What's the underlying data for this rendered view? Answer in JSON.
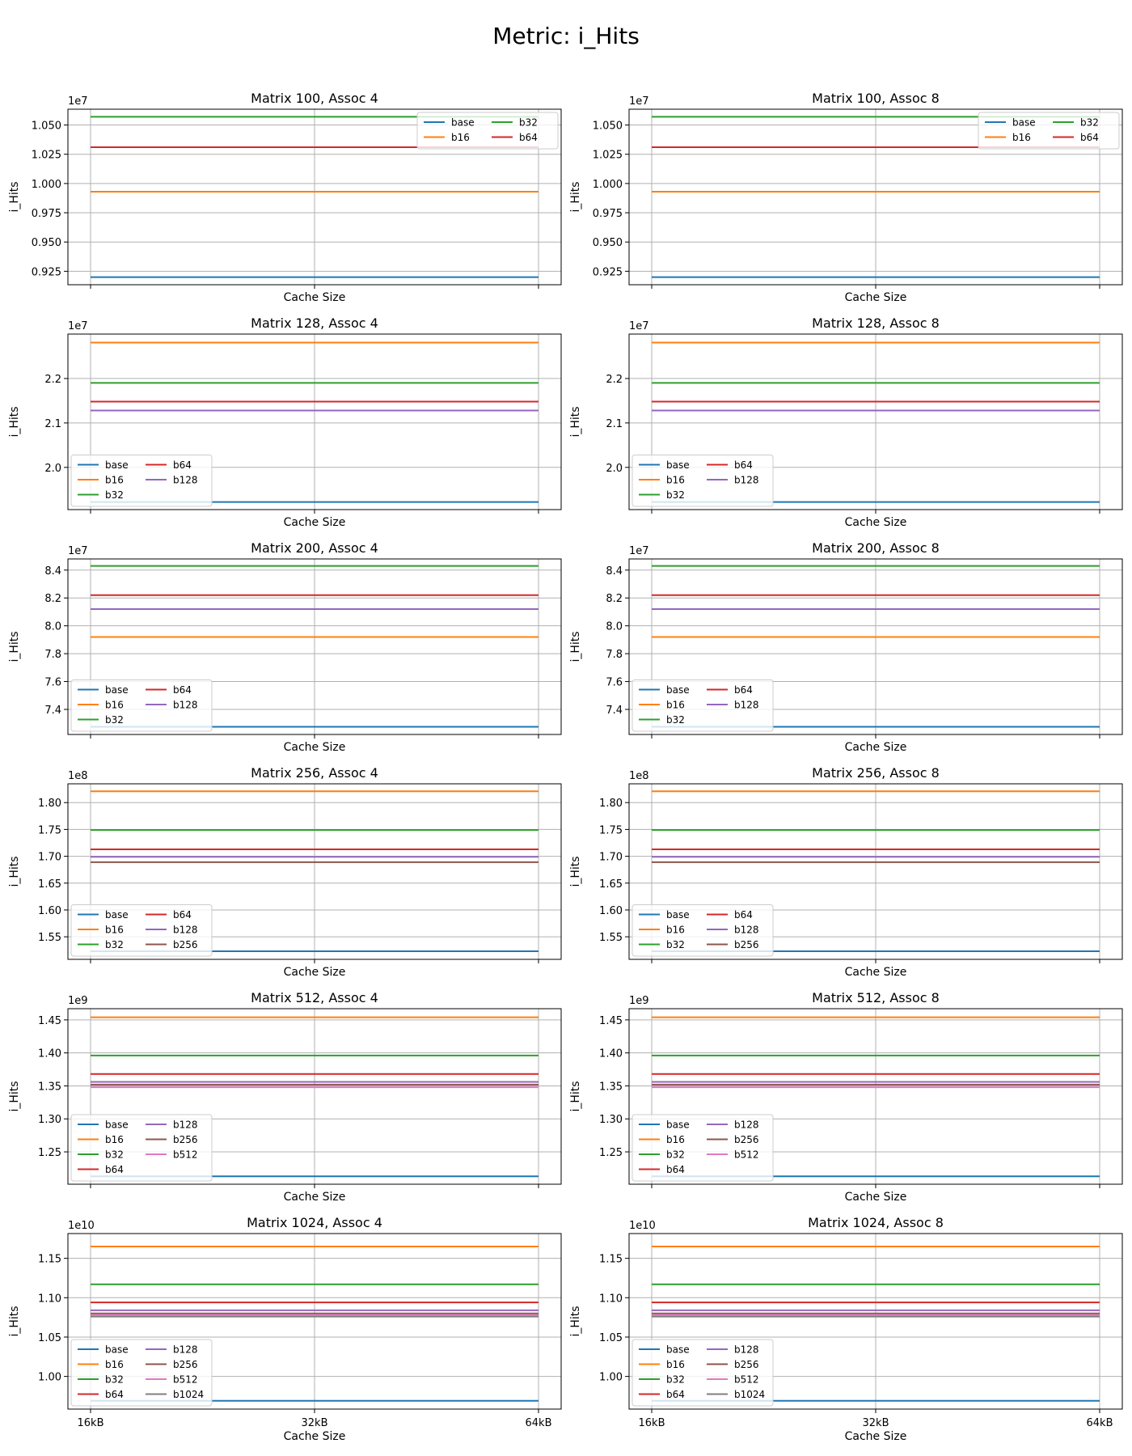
{
  "suptitle": "Metric: i_Hits",
  "colors": {
    "base": "#1f77b4",
    "b16": "#ff7f0e",
    "b32": "#2ca02c",
    "b64": "#d62728",
    "b128": "#9467bd",
    "b256": "#8c564b",
    "b512": "#e377c2",
    "b1024": "#7f7f7f"
  },
  "chart_data": [
    {
      "type": "line",
      "title": "Matrix 100, Assoc 4",
      "xlabel": "Cache Size",
      "ylabel": "i_Hits",
      "offset": "1e7",
      "legend": "top-right",
      "grid": true,
      "x": [
        "16kB",
        "32kB",
        "64kB"
      ],
      "show_xticklabels": false,
      "ylim": [
        0.9135,
        1.0635
      ],
      "yticks": [
        0.925,
        0.95,
        0.975,
        1.0,
        1.025,
        1.05
      ],
      "ytick_labels": [
        "0.925",
        "0.950",
        "0.975",
        "1.000",
        "1.025",
        "1.050"
      ],
      "series": [
        {
          "name": "base",
          "values": [
            0.92,
            0.92,
            0.92
          ]
        },
        {
          "name": "b16",
          "values": [
            0.993,
            0.993,
            0.993
          ]
        },
        {
          "name": "b32",
          "values": [
            1.057,
            1.057,
            1.057
          ]
        },
        {
          "name": "b64",
          "values": [
            1.031,
            1.031,
            1.031
          ]
        }
      ]
    },
    {
      "type": "line",
      "title": "Matrix 100, Assoc 8",
      "xlabel": "Cache Size",
      "ylabel": "i_Hits",
      "offset": "1e7",
      "legend": "top-right",
      "grid": true,
      "x": [
        "16kB",
        "32kB",
        "64kB"
      ],
      "show_xticklabels": false,
      "ylim": [
        0.9135,
        1.0635
      ],
      "yticks": [
        0.925,
        0.95,
        0.975,
        1.0,
        1.025,
        1.05
      ],
      "ytick_labels": [
        "0.925",
        "0.950",
        "0.975",
        "1.000",
        "1.025",
        "1.050"
      ],
      "series": [
        {
          "name": "base",
          "values": [
            0.92,
            0.92,
            0.92
          ]
        },
        {
          "name": "b16",
          "values": [
            0.993,
            0.993,
            0.993
          ]
        },
        {
          "name": "b32",
          "values": [
            1.057,
            1.057,
            1.057
          ]
        },
        {
          "name": "b64",
          "values": [
            1.031,
            1.031,
            1.031
          ]
        }
      ]
    },
    {
      "type": "line",
      "title": "Matrix 128, Assoc 4",
      "xlabel": "Cache Size",
      "ylabel": "i_Hits",
      "offset": "1e7",
      "legend": "lower-left",
      "grid": true,
      "x": [
        "16kB",
        "32kB",
        "64kB"
      ],
      "show_xticklabels": false,
      "ylim": [
        1.905,
        2.3
      ],
      "yticks": [
        2.0,
        2.1,
        2.2
      ],
      "ytick_labels": [
        "2.0",
        "2.1",
        "2.2"
      ],
      "series": [
        {
          "name": "base",
          "values": [
            1.922,
            1.922,
            1.922
          ]
        },
        {
          "name": "b16",
          "values": [
            2.281,
            2.281,
            2.281
          ]
        },
        {
          "name": "b32",
          "values": [
            2.19,
            2.19,
            2.19
          ]
        },
        {
          "name": "b64",
          "values": [
            2.148,
            2.148,
            2.148
          ]
        },
        {
          "name": "b128",
          "values": [
            2.128,
            2.128,
            2.128
          ]
        }
      ]
    },
    {
      "type": "line",
      "title": "Matrix 128, Assoc 8",
      "xlabel": "Cache Size",
      "ylabel": "i_Hits",
      "offset": "1e7",
      "legend": "lower-left",
      "grid": true,
      "x": [
        "16kB",
        "32kB",
        "64kB"
      ],
      "show_xticklabels": false,
      "ylim": [
        1.905,
        2.3
      ],
      "yticks": [
        2.0,
        2.1,
        2.2
      ],
      "ytick_labels": [
        "2.0",
        "2.1",
        "2.2"
      ],
      "series": [
        {
          "name": "base",
          "values": [
            1.922,
            1.922,
            1.922
          ]
        },
        {
          "name": "b16",
          "values": [
            2.281,
            2.281,
            2.281
          ]
        },
        {
          "name": "b32",
          "values": [
            2.19,
            2.19,
            2.19
          ]
        },
        {
          "name": "b64",
          "values": [
            2.148,
            2.148,
            2.148
          ]
        },
        {
          "name": "b128",
          "values": [
            2.128,
            2.128,
            2.128
          ]
        }
      ]
    },
    {
      "type": "line",
      "title": "Matrix 200, Assoc 4",
      "xlabel": "Cache Size",
      "ylabel": "i_Hits",
      "offset": "1e7",
      "legend": "lower-left",
      "grid": true,
      "x": [
        "16kB",
        "32kB",
        "64kB"
      ],
      "show_xticklabels": false,
      "ylim": [
        7.22,
        8.48
      ],
      "yticks": [
        7.4,
        7.6,
        7.8,
        8.0,
        8.2,
        8.4
      ],
      "ytick_labels": [
        "7.4",
        "7.6",
        "7.8",
        "8.0",
        "8.2",
        "8.4"
      ],
      "series": [
        {
          "name": "base",
          "values": [
            7.275,
            7.275,
            7.275
          ]
        },
        {
          "name": "b16",
          "values": [
            7.92,
            7.92,
            7.92
          ]
        },
        {
          "name": "b32",
          "values": [
            8.43,
            8.43,
            8.43
          ]
        },
        {
          "name": "b64",
          "values": [
            8.22,
            8.22,
            8.22
          ]
        },
        {
          "name": "b128",
          "values": [
            8.12,
            8.12,
            8.12
          ]
        }
      ]
    },
    {
      "type": "line",
      "title": "Matrix 200, Assoc 8",
      "xlabel": "Cache Size",
      "ylabel": "i_Hits",
      "offset": "1e7",
      "legend": "lower-left",
      "grid": true,
      "x": [
        "16kB",
        "32kB",
        "64kB"
      ],
      "show_xticklabels": false,
      "ylim": [
        7.22,
        8.48
      ],
      "yticks": [
        7.4,
        7.6,
        7.8,
        8.0,
        8.2,
        8.4
      ],
      "ytick_labels": [
        "7.4",
        "7.6",
        "7.8",
        "8.0",
        "8.2",
        "8.4"
      ],
      "series": [
        {
          "name": "base",
          "values": [
            7.275,
            7.275,
            7.275
          ]
        },
        {
          "name": "b16",
          "values": [
            7.92,
            7.92,
            7.92
          ]
        },
        {
          "name": "b32",
          "values": [
            8.43,
            8.43,
            8.43
          ]
        },
        {
          "name": "b64",
          "values": [
            8.22,
            8.22,
            8.22
          ]
        },
        {
          "name": "b128",
          "values": [
            8.12,
            8.12,
            8.12
          ]
        }
      ]
    },
    {
      "type": "line",
      "title": "Matrix 256, Assoc 4",
      "xlabel": "Cache Size",
      "ylabel": "i_Hits",
      "offset": "1e8",
      "legend": "lower-left",
      "grid": true,
      "x": [
        "16kB",
        "32kB",
        "64kB"
      ],
      "show_xticklabels": false,
      "ylim": [
        1.508,
        1.835
      ],
      "yticks": [
        1.55,
        1.6,
        1.65,
        1.7,
        1.75,
        1.8
      ],
      "ytick_labels": [
        "1.55",
        "1.60",
        "1.65",
        "1.70",
        "1.75",
        "1.80"
      ],
      "series": [
        {
          "name": "base",
          "values": [
            1.523,
            1.523,
            1.523
          ]
        },
        {
          "name": "b16",
          "values": [
            1.821,
            1.821,
            1.821
          ]
        },
        {
          "name": "b32",
          "values": [
            1.749,
            1.749,
            1.749
          ]
        },
        {
          "name": "b64",
          "values": [
            1.713,
            1.713,
            1.713
          ]
        },
        {
          "name": "b128",
          "values": [
            1.699,
            1.699,
            1.699
          ]
        },
        {
          "name": "b256",
          "values": [
            1.689,
            1.689,
            1.689
          ]
        }
      ]
    },
    {
      "type": "line",
      "title": "Matrix 256, Assoc 8",
      "xlabel": "Cache Size",
      "ylabel": "i_Hits",
      "offset": "1e8",
      "legend": "lower-left",
      "grid": true,
      "x": [
        "16kB",
        "32kB",
        "64kB"
      ],
      "show_xticklabels": false,
      "ylim": [
        1.508,
        1.835
      ],
      "yticks": [
        1.55,
        1.6,
        1.65,
        1.7,
        1.75,
        1.8
      ],
      "ytick_labels": [
        "1.55",
        "1.60",
        "1.65",
        "1.70",
        "1.75",
        "1.80"
      ],
      "series": [
        {
          "name": "base",
          "values": [
            1.523,
            1.523,
            1.523
          ]
        },
        {
          "name": "b16",
          "values": [
            1.821,
            1.821,
            1.821
          ]
        },
        {
          "name": "b32",
          "values": [
            1.749,
            1.749,
            1.749
          ]
        },
        {
          "name": "b64",
          "values": [
            1.713,
            1.713,
            1.713
          ]
        },
        {
          "name": "b128",
          "values": [
            1.699,
            1.699,
            1.699
          ]
        },
        {
          "name": "b256",
          "values": [
            1.689,
            1.689,
            1.689
          ]
        }
      ]
    },
    {
      "type": "line",
      "title": "Matrix 512, Assoc 4",
      "xlabel": "Cache Size",
      "ylabel": "i_Hits",
      "offset": "1e9",
      "legend": "lower-left",
      "grid": true,
      "x": [
        "16kB",
        "32kB",
        "64kB"
      ],
      "show_xticklabels": false,
      "ylim": [
        1.201,
        1.467
      ],
      "yticks": [
        1.25,
        1.3,
        1.35,
        1.4,
        1.45
      ],
      "ytick_labels": [
        "1.25",
        "1.30",
        "1.35",
        "1.40",
        "1.45"
      ],
      "series": [
        {
          "name": "base",
          "values": [
            1.213,
            1.213,
            1.213
          ]
        },
        {
          "name": "b16",
          "values": [
            1.454,
            1.454,
            1.454
          ]
        },
        {
          "name": "b32",
          "values": [
            1.396,
            1.396,
            1.396
          ]
        },
        {
          "name": "b64",
          "values": [
            1.368,
            1.368,
            1.368
          ]
        },
        {
          "name": "b128",
          "values": [
            1.356,
            1.356,
            1.356
          ]
        },
        {
          "name": "b256",
          "values": [
            1.352,
            1.352,
            1.352
          ]
        },
        {
          "name": "b512",
          "values": [
            1.348,
            1.348,
            1.348
          ]
        }
      ]
    },
    {
      "type": "line",
      "title": "Matrix 512, Assoc 8",
      "xlabel": "Cache Size",
      "ylabel": "i_Hits",
      "offset": "1e9",
      "legend": "lower-left",
      "grid": true,
      "x": [
        "16kB",
        "32kB",
        "64kB"
      ],
      "show_xticklabels": false,
      "ylim": [
        1.201,
        1.467
      ],
      "yticks": [
        1.25,
        1.3,
        1.35,
        1.4,
        1.45
      ],
      "ytick_labels": [
        "1.25",
        "1.30",
        "1.35",
        "1.40",
        "1.45"
      ],
      "series": [
        {
          "name": "base",
          "values": [
            1.213,
            1.213,
            1.213
          ]
        },
        {
          "name": "b16",
          "values": [
            1.454,
            1.454,
            1.454
          ]
        },
        {
          "name": "b32",
          "values": [
            1.396,
            1.396,
            1.396
          ]
        },
        {
          "name": "b64",
          "values": [
            1.368,
            1.368,
            1.368
          ]
        },
        {
          "name": "b128",
          "values": [
            1.356,
            1.356,
            1.356
          ]
        },
        {
          "name": "b256",
          "values": [
            1.352,
            1.352,
            1.352
          ]
        },
        {
          "name": "b512",
          "values": [
            1.348,
            1.348,
            1.348
          ]
        }
      ]
    },
    {
      "type": "line",
      "title": "Matrix 1024, Assoc 4",
      "xlabel": "Cache Size",
      "ylabel": "i_Hits",
      "offset": "1e10",
      "legend": "lower-left",
      "grid": true,
      "x": [
        "16kB",
        "32kB",
        "64kB"
      ],
      "show_xticklabels": true,
      "ylim": [
        0.9585,
        1.1815
      ],
      "yticks": [
        1.0,
        1.05,
        1.1,
        1.15
      ],
      "ytick_labels": [
        "1.00",
        "1.05",
        "1.10",
        "1.15"
      ],
      "series": [
        {
          "name": "base",
          "values": [
            0.969,
            0.969,
            0.969
          ]
        },
        {
          "name": "b16",
          "values": [
            1.165,
            1.165,
            1.165
          ]
        },
        {
          "name": "b32",
          "values": [
            1.117,
            1.117,
            1.117
          ]
        },
        {
          "name": "b64",
          "values": [
            1.094,
            1.094,
            1.094
          ]
        },
        {
          "name": "b128",
          "values": [
            1.084,
            1.084,
            1.084
          ]
        },
        {
          "name": "b256",
          "values": [
            1.08,
            1.08,
            1.08
          ]
        },
        {
          "name": "b512",
          "values": [
            1.078,
            1.078,
            1.078
          ]
        },
        {
          "name": "b1024",
          "values": [
            1.076,
            1.076,
            1.076
          ]
        }
      ]
    },
    {
      "type": "line",
      "title": "Matrix 1024, Assoc 8",
      "xlabel": "Cache Size",
      "ylabel": "i_Hits",
      "offset": "1e10",
      "legend": "lower-left",
      "grid": true,
      "x": [
        "16kB",
        "32kB",
        "64kB"
      ],
      "show_xticklabels": true,
      "ylim": [
        0.9585,
        1.1815
      ],
      "yticks": [
        1.0,
        1.05,
        1.1,
        1.15
      ],
      "ytick_labels": [
        "1.00",
        "1.05",
        "1.10",
        "1.15"
      ],
      "series": [
        {
          "name": "base",
          "values": [
            0.969,
            0.969,
            0.969
          ]
        },
        {
          "name": "b16",
          "values": [
            1.165,
            1.165,
            1.165
          ]
        },
        {
          "name": "b32",
          "values": [
            1.117,
            1.117,
            1.117
          ]
        },
        {
          "name": "b64",
          "values": [
            1.094,
            1.094,
            1.094
          ]
        },
        {
          "name": "b128",
          "values": [
            1.084,
            1.084,
            1.084
          ]
        },
        {
          "name": "b256",
          "values": [
            1.08,
            1.08,
            1.08
          ]
        },
        {
          "name": "b512",
          "values": [
            1.078,
            1.078,
            1.078
          ]
        },
        {
          "name": "b1024",
          "values": [
            1.076,
            1.076,
            1.076
          ]
        }
      ]
    }
  ]
}
